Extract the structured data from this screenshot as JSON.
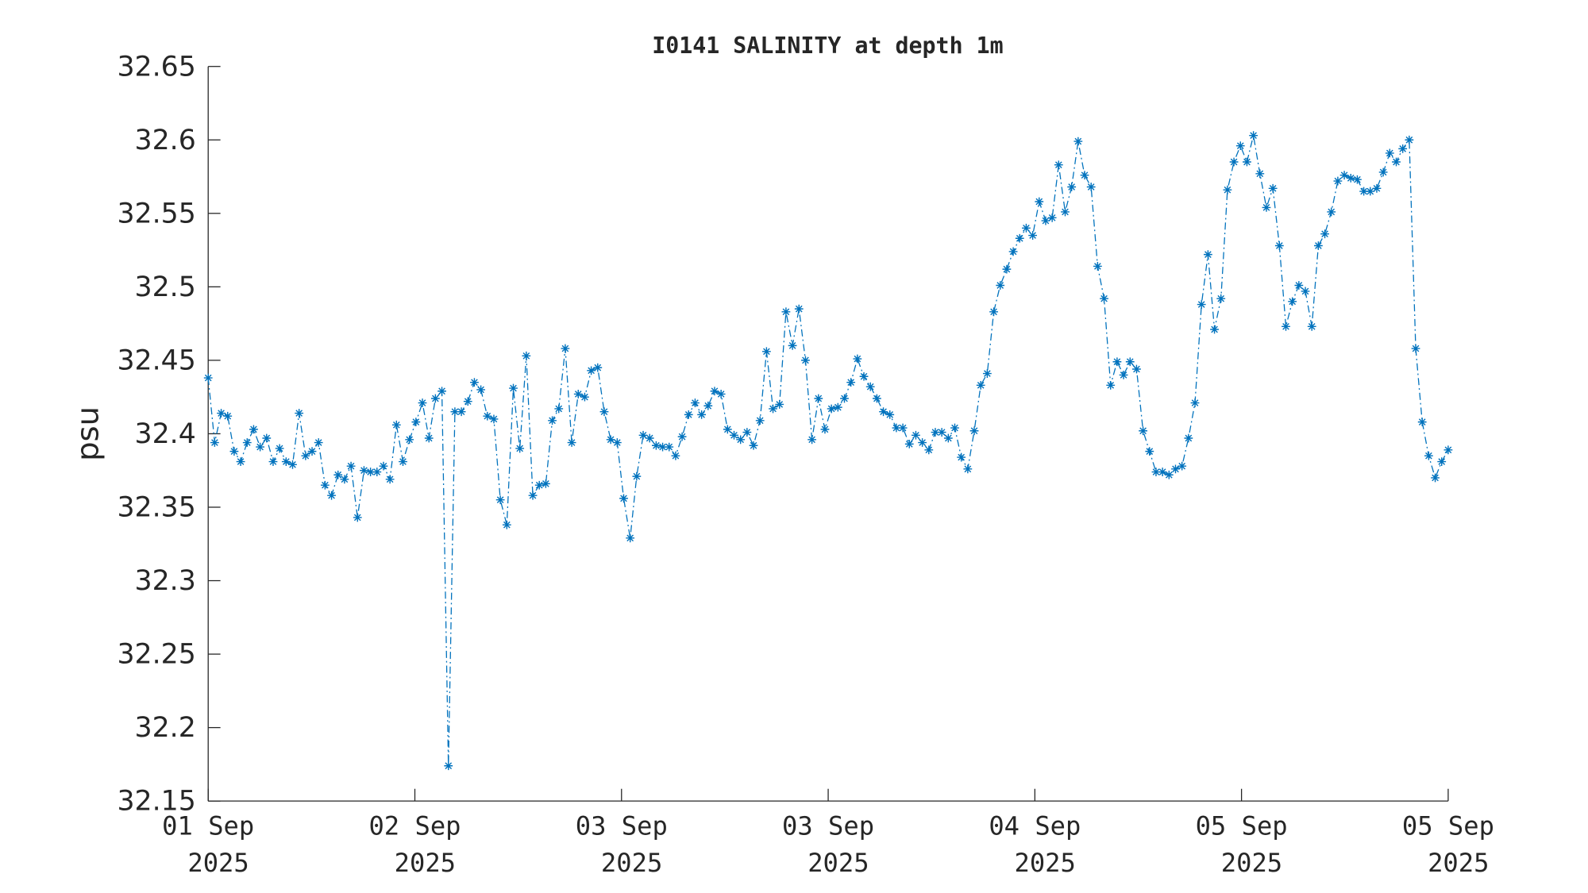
{
  "chart_data": {
    "type": "line",
    "title": "I0141 SALINITY at depth 1m",
    "y_label": "psu",
    "x": [
      0,
      0.5,
      1,
      1.5,
      2,
      2.5,
      3,
      3.5,
      4,
      4.5,
      5,
      5.5,
      6,
      6.5,
      7,
      7.5,
      8,
      8.5,
      9,
      9.5,
      10,
      10.5,
      11,
      11.5,
      12,
      12.5,
      13,
      13.5,
      14,
      14.5,
      15,
      15.5,
      16,
      16.5,
      17,
      17.5,
      18,
      18.5,
      19,
      19.5,
      20,
      20.5,
      21,
      21.5,
      22,
      22.5,
      23,
      23.5,
      24,
      24.5,
      25,
      25.5,
      26,
      26.5,
      27,
      27.5,
      28,
      28.5,
      29,
      29.5,
      30,
      30.5,
      31,
      31.5,
      32,
      32.5,
      33,
      33.5,
      34,
      34.5,
      35,
      35.5,
      36,
      36.5,
      37,
      37.5,
      38,
      38.5,
      39,
      39.5,
      40,
      40.5,
      41,
      41.5,
      42,
      42.5,
      43,
      43.5,
      44,
      44.5,
      45,
      45.5,
      46,
      46.5,
      47,
      47.5,
      48,
      48.5,
      49,
      49.5,
      50,
      50.5,
      51,
      51.5,
      52,
      52.5,
      53,
      53.5,
      54,
      54.5,
      55,
      55.5,
      56,
      56.5,
      57,
      57.5,
      58,
      58.5,
      59,
      59.5,
      60,
      60.5,
      61,
      61.5,
      62,
      62.5,
      63,
      63.5,
      64,
      64.5,
      65,
      65.5,
      66,
      66.5,
      67,
      67.5,
      68,
      68.5,
      69,
      69.5,
      70,
      70.5,
      71,
      71.5,
      72,
      72.5,
      73,
      73.5,
      74,
      74.5,
      75,
      75.5,
      76,
      76.5,
      77,
      77.5,
      78,
      78.5,
      79,
      79.5,
      80,
      80.5,
      81,
      81.5,
      82,
      82.5,
      83,
      83.5,
      84,
      84.5,
      85,
      85.5,
      86,
      86.5,
      87,
      87.5,
      88,
      88.5,
      89,
      89.5,
      90,
      90.5,
      91,
      91.5,
      92,
      92.5,
      93,
      93.5,
      94,
      94.5,
      95,
      95.5
    ],
    "series": [
      {
        "name": "SALINITY",
        "color": "#0072bd",
        "marker": "*",
        "line_style": "dashdot",
        "values": [
          32.438,
          32.394,
          32.414,
          32.412,
          32.388,
          32.381,
          32.394,
          32.403,
          32.391,
          32.397,
          32.381,
          32.39,
          32.381,
          32.379,
          32.414,
          32.385,
          32.388,
          32.394,
          32.365,
          32.358,
          32.372,
          32.369,
          32.378,
          32.343,
          32.375,
          32.374,
          32.374,
          32.378,
          32.369,
          32.406,
          32.381,
          32.396,
          32.408,
          32.421,
          32.397,
          32.424,
          32.429,
          32.174,
          32.415,
          32.415,
          32.422,
          32.435,
          32.43,
          32.412,
          32.41,
          32.355,
          32.338,
          32.431,
          32.39,
          32.453,
          32.358,
          32.365,
          32.366,
          32.409,
          32.417,
          32.458,
          32.394,
          32.427,
          32.425,
          32.443,
          32.445,
          32.415,
          32.396,
          32.394,
          32.356,
          32.329,
          32.371,
          32.399,
          32.397,
          32.392,
          32.391,
          32.391,
          32.385,
          32.398,
          32.413,
          32.421,
          32.413,
          32.419,
          32.429,
          32.427,
          32.403,
          32.399,
          32.396,
          32.401,
          32.392,
          32.409,
          32.456,
          32.417,
          32.42,
          32.483,
          32.46,
          32.485,
          32.45,
          32.396,
          32.424,
          32.403,
          32.417,
          32.418,
          32.424,
          32.435,
          32.451,
          32.439,
          32.432,
          32.424,
          32.415,
          32.413,
          32.404,
          32.404,
          32.393,
          32.399,
          32.394,
          32.389,
          32.401,
          32.401,
          32.397,
          32.404,
          32.384,
          32.376,
          32.402,
          32.433,
          32.441,
          32.483,
          32.501,
          32.512,
          32.524,
          32.533,
          32.54,
          32.535,
          32.558,
          32.545,
          32.547,
          32.583,
          32.551,
          32.568,
          32.599,
          32.576,
          32.568,
          32.514,
          32.492,
          32.433,
          32.449,
          32.44,
          32.449,
          32.444,
          32.402,
          32.388,
          32.374,
          32.374,
          32.372,
          32.376,
          32.378,
          32.397,
          32.421,
          32.488,
          32.522,
          32.471,
          32.492,
          32.566,
          32.585,
          32.596,
          32.585,
          32.603,
          32.577,
          32.554,
          32.567,
          32.528,
          32.473,
          32.49,
          32.501,
          32.497,
          32.473,
          32.528,
          32.536,
          32.551,
          32.572,
          32.576,
          32.574,
          32.573,
          32.565,
          32.565,
          32.567,
          32.578,
          32.591,
          32.585,
          32.594,
          32.6,
          32.458,
          32.408,
          32.385,
          32.37,
          32.381,
          32.389
        ]
      }
    ],
    "xlim": [
      0,
      95.5
    ],
    "xticks": [
      {
        "value": 0,
        "label": "01 Sep 2025"
      },
      {
        "value": 15.917,
        "label": "02 Sep 2025"
      },
      {
        "value": 31.833,
        "label": "03 Sep 2025"
      },
      {
        "value": 47.75,
        "label": "03 Sep 2025"
      },
      {
        "value": 63.667,
        "label": "04 Sep 2025"
      },
      {
        "value": 79.583,
        "label": "05 Sep 2025"
      },
      {
        "value": 95.5,
        "label": "05 Sep 2025"
      }
    ],
    "ylim": [
      32.15,
      32.65
    ],
    "yticks": [
      32.15,
      32.2,
      32.25,
      32.3,
      32.35,
      32.4,
      32.45,
      32.5,
      32.55,
      32.6,
      32.65
    ],
    "grid": false
  }
}
